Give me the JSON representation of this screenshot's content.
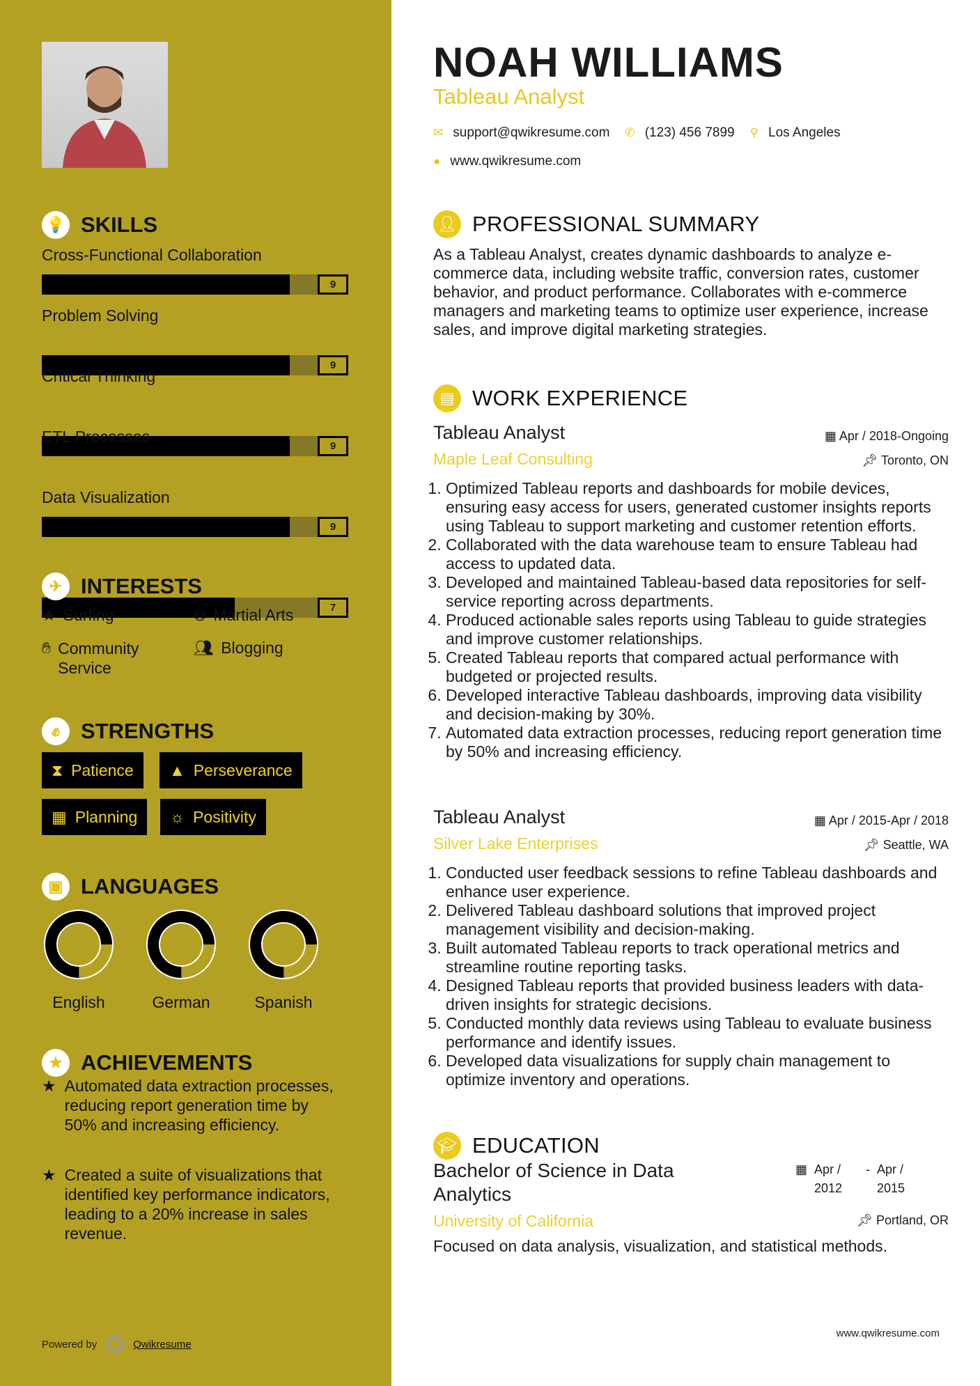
{
  "header": {
    "name": "NOAH WILLIAMS",
    "title": "Tableau Analyst",
    "email": "support@qwikresume.com",
    "phone": "(123) 456 7899",
    "location": "Los Angeles",
    "website": "www.qwikresume.com"
  },
  "colors": {
    "sidebar": "#b4a123",
    "accent": "#e8c81e",
    "dark": "#000000"
  },
  "skills": {
    "heading": "SKILLS",
    "items": [
      {
        "label": "Cross-Functional Collaboration",
        "value": 9
      },
      {
        "label": "Problem Solving",
        "value": 9
      },
      {
        "label": "Critical Thinking",
        "value": 9
      },
      {
        "label": "ETL Processes",
        "value": 9
      },
      {
        "label": "Data Visualization",
        "value": 7
      }
    ],
    "max": 10
  },
  "interests": {
    "heading": "INTERESTS",
    "items": [
      {
        "label": "Surfing",
        "icon": "star-icon"
      },
      {
        "label": "Martial Arts",
        "icon": "globe-icon"
      },
      {
        "label": "Community Service",
        "icon": "hand-icon"
      },
      {
        "label": "Blogging",
        "icon": "users-icon"
      }
    ]
  },
  "strengths": {
    "heading": "STRENGTHS",
    "items": [
      {
        "label": "Patience",
        "icon": "hourglass-icon"
      },
      {
        "label": "Perseverance",
        "icon": "road-icon"
      },
      {
        "label": "Planning",
        "icon": "calendar-icon"
      },
      {
        "label": "Positivity",
        "icon": "sun-icon"
      }
    ]
  },
  "languages": {
    "heading": "LANGUAGES",
    "items": [
      {
        "label": "English",
        "level": 0.75
      },
      {
        "label": "German",
        "level": 0.75
      },
      {
        "label": "Spanish",
        "level": 0.75
      }
    ]
  },
  "achievements": {
    "heading": "ACHIEVEMENTS",
    "items": [
      "Automated data extraction processes, reducing report generation time by 50% and increasing efficiency.",
      "Created a suite of visualizations that identified key performance indicators, leading to a 20% increase in sales revenue."
    ]
  },
  "summary": {
    "heading": "PROFESSIONAL SUMMARY",
    "text": "As a Tableau Analyst, creates dynamic dashboards to analyze e-commerce data, including website traffic, conversion rates, customer behavior, and product performance. Collaborates with e-commerce managers and marketing teams to optimize user experience, increase sales, and improve digital marketing strategies."
  },
  "experience": {
    "heading": "WORK EXPERIENCE",
    "jobs": [
      {
        "title": "Tableau Analyst",
        "company": "Maple Leaf Consulting",
        "dates": "Apr / 2018-Ongoing",
        "location": "Toronto, ON",
        "bullets": [
          "Optimized Tableau reports and dashboards for mobile devices, ensuring easy access for users, generated customer insights reports using Tableau to support marketing and customer retention efforts.",
          "Collaborated with the data warehouse team to ensure Tableau had access to updated data.",
          "Developed and maintained Tableau-based data repositories for self-service reporting across departments.",
          "Produced actionable sales reports using Tableau to guide strategies and improve customer relationships.",
          "Created Tableau reports that compared actual performance with budgeted or projected results.",
          "Developed interactive Tableau dashboards, improving data visibility and decision-making by 30%.",
          "Automated data extraction processes, reducing report generation time by 50% and increasing efficiency."
        ]
      },
      {
        "title": "Tableau Analyst",
        "company": "Silver Lake Enterprises",
        "dates": "Apr / 2015-Apr / 2018",
        "location": "Seattle, WA",
        "bullets": [
          "Conducted user feedback sessions to refine Tableau dashboards and enhance user experience.",
          "Delivered Tableau dashboard solutions that improved project management visibility and decision-making.",
          "Built automated Tableau reports to track operational metrics and streamline routine reporting tasks.",
          "Designed Tableau reports that provided business leaders with data-driven insights for strategic decisions.",
          "Conducted monthly data reviews using Tableau to evaluate business performance and identify issues.",
          "Developed data visualizations for supply chain management to optimize inventory and operations."
        ]
      }
    ]
  },
  "education": {
    "heading": "EDUCATION",
    "degree": "Bachelor of Science in Data Analytics",
    "school": "University of California",
    "start": "Apr / 2012",
    "end": "Apr / 2015",
    "location": "Portland, OR",
    "description": "Focused on data analysis, visualization, and statistical methods."
  },
  "footer": {
    "powered_by": "Powered by",
    "brand": "Qwikresume",
    "website": "www.qwikresume.com"
  }
}
